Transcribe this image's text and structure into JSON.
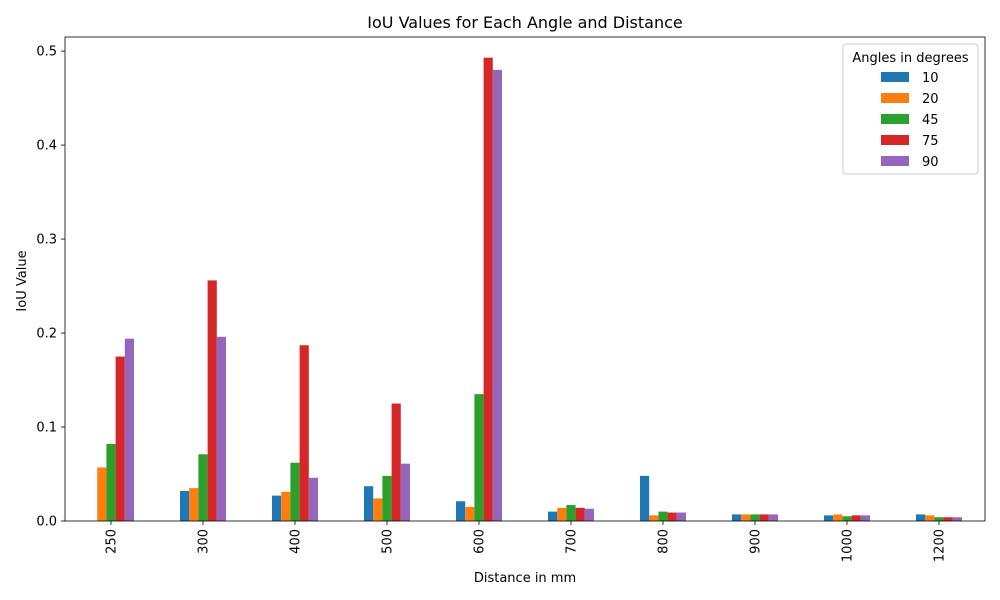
{
  "chart_data": {
    "type": "bar",
    "title": "IoU Values for Each Angle and Distance",
    "xlabel": "Distance in mm",
    "ylabel": "IoU Value",
    "categories": [
      "250",
      "300",
      "400",
      "500",
      "600",
      "700",
      "800",
      "900",
      "1000",
      "1200"
    ],
    "ylim": [
      0,
      0.515
    ],
    "yticks": [
      0.0,
      0.1,
      0.2,
      0.3,
      0.4,
      0.5
    ],
    "ytick_labels": [
      "0.0",
      "0.1",
      "0.2",
      "0.3",
      "0.4",
      "0.5"
    ],
    "legend_title": "Angles in degrees",
    "legend_position": "top-right",
    "grid": false,
    "series": [
      {
        "name": "10",
        "color": "#1f77b4",
        "values": [
          0.0,
          0.032,
          0.027,
          0.037,
          0.021,
          0.01,
          0.048,
          0.007,
          0.006,
          0.007
        ]
      },
      {
        "name": "20",
        "color": "#ff7f0e",
        "values": [
          0.057,
          0.035,
          0.031,
          0.024,
          0.015,
          0.014,
          0.006,
          0.007,
          0.007,
          0.006
        ]
      },
      {
        "name": "45",
        "color": "#2ca02c",
        "values": [
          0.082,
          0.071,
          0.062,
          0.048,
          0.135,
          0.017,
          0.01,
          0.007,
          0.005,
          0.004
        ]
      },
      {
        "name": "75",
        "color": "#d62728",
        "values": [
          0.175,
          0.256,
          0.187,
          0.125,
          0.493,
          0.014,
          0.009,
          0.007,
          0.006,
          0.004
        ]
      },
      {
        "name": "90",
        "color": "#9467bd",
        "values": [
          0.194,
          0.196,
          0.046,
          0.061,
          0.48,
          0.013,
          0.009,
          0.007,
          0.006,
          0.004
        ]
      }
    ]
  }
}
